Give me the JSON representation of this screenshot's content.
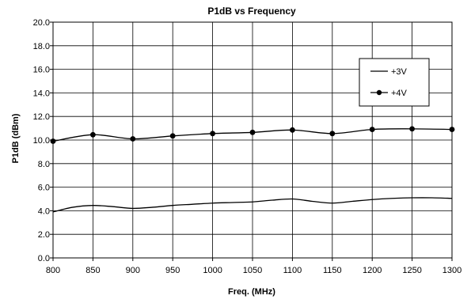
{
  "chart_data": {
    "type": "line",
    "title": "P1dB vs Frequency",
    "xlabel": "Freq. (MHz)",
    "ylabel": "P1dB (dBm)",
    "xlim": [
      800,
      1300
    ],
    "ylim": [
      0,
      20
    ],
    "x_ticks": [
      800,
      850,
      900,
      950,
      1000,
      1050,
      1100,
      1150,
      1200,
      1250,
      1300
    ],
    "y_ticks": [
      0,
      2,
      4,
      6,
      8,
      10,
      12,
      14,
      16,
      18,
      20
    ],
    "x_tick_labels": [
      "800",
      "850",
      "900",
      "950",
      "1000",
      "1050",
      "1100",
      "1150",
      "1200",
      "1250",
      "1300"
    ],
    "y_tick_labels": [
      "0.0",
      "2.0",
      "4.0",
      "6.0",
      "8.0",
      "10.0",
      "12.0",
      "14.0",
      "16.0",
      "18.0",
      "20.0"
    ],
    "grid": true,
    "legend_position": "right",
    "series": [
      {
        "name": "+3V",
        "marker": "none",
        "color": "#000000",
        "x": [
          800,
          825,
          850,
          875,
          900,
          925,
          950,
          975,
          1000,
          1025,
          1050,
          1075,
          1100,
          1125,
          1150,
          1175,
          1200,
          1225,
          1250,
          1275,
          1300
        ],
        "y": [
          3.9,
          4.3,
          4.45,
          4.35,
          4.2,
          4.3,
          4.45,
          4.55,
          4.65,
          4.7,
          4.75,
          4.9,
          5.0,
          4.8,
          4.65,
          4.8,
          4.95,
          5.05,
          5.1,
          5.1,
          5.05
        ]
      },
      {
        "name": "+4V",
        "marker": "circle",
        "color": "#000000",
        "x": [
          800,
          850,
          900,
          950,
          1000,
          1050,
          1100,
          1150,
          1200,
          1250,
          1300
        ],
        "y": [
          9.9,
          10.45,
          10.1,
          10.35,
          10.55,
          10.65,
          10.85,
          10.55,
          10.9,
          10.95,
          10.9
        ]
      }
    ]
  }
}
